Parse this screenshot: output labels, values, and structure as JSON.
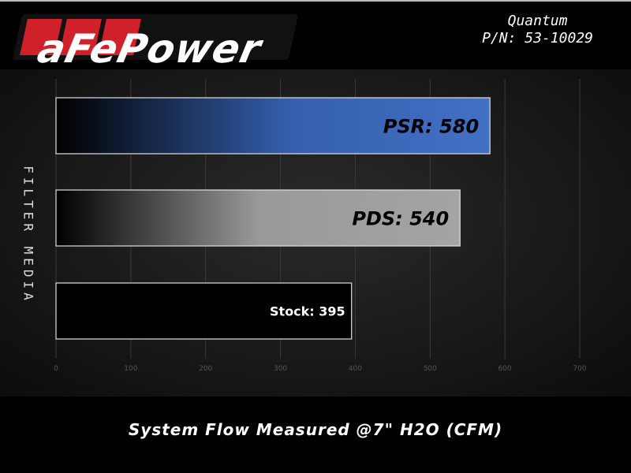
{
  "header": {
    "logo": "aFePower",
    "product": "Quantum",
    "part_number": "P/N: 53-10029"
  },
  "chart_data": {
    "type": "bar",
    "orientation": "horizontal",
    "categories": [
      "PSR",
      "PDS",
      "Stock"
    ],
    "values": [
      580,
      540,
      395
    ],
    "data_labels": [
      "PSR: 580",
      "PDS: 540",
      "Stock: 395"
    ],
    "xlabel": "System Flow Measured @7\" H2O (CFM)",
    "ylabel": "FILTER MEDIA",
    "xlim": [
      0,
      700
    ],
    "xticks": [
      "0",
      "100",
      "200",
      "300",
      "400",
      "500",
      "600",
      "700"
    ],
    "grid": true,
    "colors": [
      "#3f6dc2",
      "#a0a0a0",
      "#000000"
    ]
  }
}
